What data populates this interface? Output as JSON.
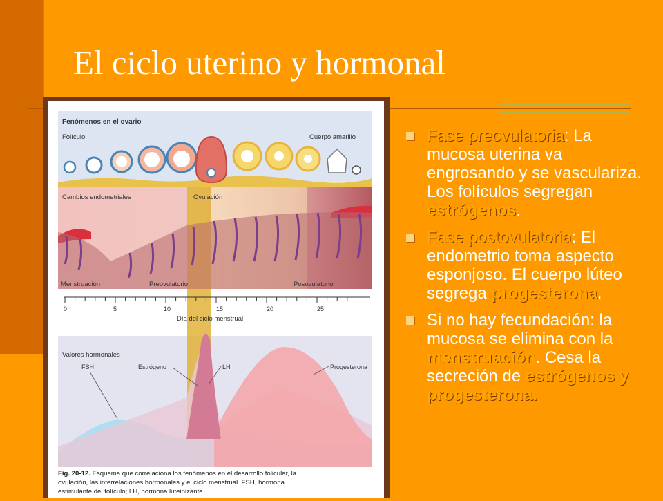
{
  "slide": {
    "title": "El ciclo uterino y hormonal",
    "accent_color": "#FF9900",
    "accent_dark": "#D46A00"
  },
  "figure": {
    "ovary_label": "Fenómenos en el ovario",
    "follicle_label": "Folículo",
    "corpus_luteum_label": "Cuerpo amarillo",
    "endometrial_label": "Cambios endometriales",
    "ovulation_label": "Ovulación",
    "phase_menstruation": "Menstruación",
    "phase_preovulatory": "Preovulatorio",
    "phase_postovulatory": "Posovulatorio",
    "day_ticks": [
      "0",
      "5",
      "10",
      "15",
      "20",
      "25"
    ],
    "axis_title": "Día del ciclo menstrual",
    "hormone_title": "Valores hormonales",
    "fsh_label": "FSH",
    "estrogen_label": "Estrógeno",
    "lh_label": "LH",
    "progesterone_label": "Progesterona",
    "caption_bold": "Fig. 20-12.",
    "caption_line1": " Esquema que correlaciona los fenómenos en el desarrollo folicular, la",
    "caption_line2": "ovulación, las interrelaciones hormonales y el ciclo menstrual. FSH, hormona",
    "caption_line3": "estimulante del folículo; LH, hormona luteinizante."
  },
  "bullets": [
    {
      "term": "Fase preovulatoria",
      "text1": ": La mucosa uterina va engrosando y se vasculariza. Los folículos segregan ",
      "emph": "estrógenos",
      "text2": "."
    },
    {
      "term": "Fase postovulatoria",
      "text1": ": El endometrio toma aspecto esponjoso. El cuerpo lúteo segrega ",
      "emph": "progesterona",
      "text2": "."
    },
    {
      "text1": "Si no hay fecundación: la mucosa se elimina con la ",
      "emph": "menstruación",
      "text2": ". Cesa la secreción de ",
      "emph2": "estrógenos y progesterona."
    }
  ]
}
